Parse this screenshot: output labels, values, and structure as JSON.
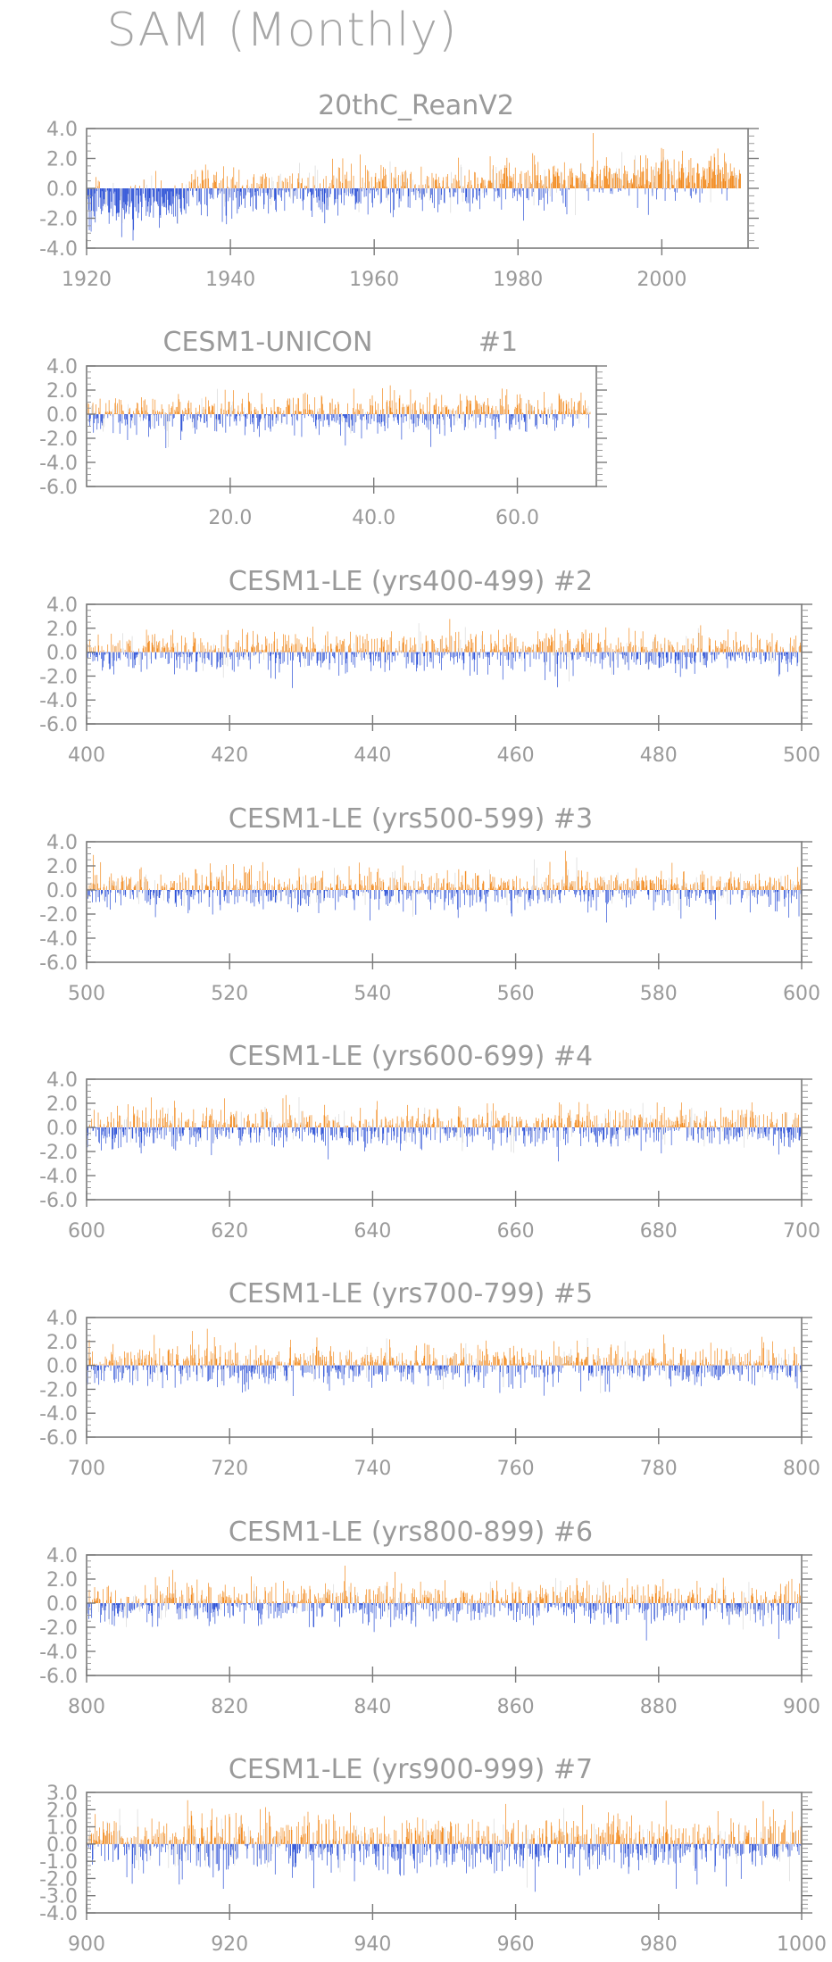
{
  "page": {
    "title": "SAM (Monthly)",
    "colors": {
      "positive": "#f28a1e",
      "negative": "#2a4fd6",
      "axis": "#8a8a8a",
      "text": "#9a9a9a"
    }
  },
  "chart_data": [
    {
      "type": "bar",
      "title": "20thC_ReanV2",
      "xlim": [
        1920,
        2012
      ],
      "ylim": [
        -4.0,
        4.0
      ],
      "yticks": [
        "4.0",
        "2.0",
        "0.0",
        "-2.0",
        "-4.0"
      ],
      "xticks": [
        "1920",
        "1940",
        "1960",
        "1980",
        "2000"
      ],
      "series": [
        {
          "values": {
            "x_start": 1920.0,
            "x_step": 0.0833,
            "description_values": [
              [
                1920,
                -1.1
              ],
              [
                1922,
                -1.4
              ],
              [
                1924,
                -1.2
              ],
              [
                1926,
                -1.3
              ],
              [
                1928,
                -1.5
              ],
              [
                1930,
                -1.6
              ],
              [
                1932,
                -1.2
              ],
              [
                1934,
                0.4
              ],
              [
                1936,
                -0.6
              ],
              [
                1938,
                0.2
              ],
              [
                1940,
                -0.8
              ],
              [
                1942,
                0.6
              ],
              [
                1944,
                -0.9
              ],
              [
                1946,
                0.4
              ],
              [
                1948,
                -0.3
              ],
              [
                1950,
                0.7
              ],
              [
                1952,
                -0.4
              ],
              [
                1954,
                0.5
              ],
              [
                1956,
                0.6
              ],
              [
                1958,
                -0.5
              ],
              [
                1960,
                0.9
              ],
              [
                1962,
                -1.3
              ],
              [
                1964,
                0.8
              ],
              [
                1966,
                -0.6
              ],
              [
                1968,
                0.7
              ],
              [
                1970,
                0.3
              ],
              [
                1972,
                -0.8
              ],
              [
                1974,
                0.9
              ],
              [
                1976,
                0.7
              ],
              [
                1978,
                1.2
              ],
              [
                1980,
                1.3
              ],
              [
                1982,
                0.9
              ],
              [
                1984,
                1.1
              ],
              [
                1986,
                1.5
              ],
              [
                1988,
                1.3
              ],
              [
                1990,
                1.6
              ],
              [
                1992,
                1.2
              ],
              [
                1994,
                1.4
              ],
              [
                1996,
                1.3
              ],
              [
                1998,
                1.5
              ],
              [
                2000,
                1.7
              ],
              [
                2002,
                1.4
              ],
              [
                2004,
                1.3
              ],
              [
                2006,
                1.6
              ],
              [
                2008,
                1.5
              ],
              [
                2010,
                1.7
              ]
            ]
          }
        }
      ]
    },
    {
      "type": "bar",
      "title": "CESM1-UNICON",
      "subtitle": "#1",
      "xlim": [
        0,
        71
      ],
      "ylim": [
        -6.0,
        4.0
      ],
      "yticks": [
        "4.0",
        "2.0",
        "0.0",
        "-2.0",
        "-4.0",
        "-6.0"
      ],
      "xticks": [
        "20.0",
        "40.0",
        "60.0"
      ]
    },
    {
      "type": "bar",
      "title": "CESM1-LE (yrs400-499)",
      "subtitle": "#2",
      "xlim": [
        400,
        500
      ],
      "ylim": [
        -6.0,
        4.0
      ],
      "yticks": [
        "4.0",
        "2.0",
        "0.0",
        "-2.0",
        "-4.0",
        "-6.0"
      ],
      "xticks": [
        "400",
        "420",
        "440",
        "460",
        "480",
        "500"
      ]
    },
    {
      "type": "bar",
      "title": "CESM1-LE (yrs500-599)",
      "subtitle": "#3",
      "xlim": [
        500,
        600
      ],
      "ylim": [
        -6.0,
        4.0
      ],
      "yticks": [
        "4.0",
        "2.0",
        "0.0",
        "-2.0",
        "-4.0",
        "-6.0"
      ],
      "xticks": [
        "500",
        "520",
        "540",
        "560",
        "580",
        "600"
      ]
    },
    {
      "type": "bar",
      "title": "CESM1-LE (yrs600-699)",
      "subtitle": "#4",
      "xlim": [
        600,
        700
      ],
      "ylim": [
        -6.0,
        4.0
      ],
      "yticks": [
        "4.0",
        "2.0",
        "0.0",
        "-2.0",
        "-4.0",
        "-6.0"
      ],
      "xticks": [
        "600",
        "620",
        "640",
        "660",
        "680",
        "700"
      ]
    },
    {
      "type": "bar",
      "title": "CESM1-LE (yrs700-799)",
      "subtitle": "#5",
      "xlim": [
        700,
        800
      ],
      "ylim": [
        -6.0,
        4.0
      ],
      "yticks": [
        "4.0",
        "2.0",
        "0.0",
        "-2.0",
        "-4.0",
        "-6.0"
      ],
      "xticks": [
        "700",
        "720",
        "740",
        "760",
        "780",
        "800"
      ]
    },
    {
      "type": "bar",
      "title": "CESM1-LE (yrs800-899)",
      "subtitle": "#6",
      "xlim": [
        800,
        900
      ],
      "ylim": [
        -6.0,
        4.0
      ],
      "yticks": [
        "4.0",
        "2.0",
        "0.0",
        "-2.0",
        "-4.0",
        "-6.0"
      ],
      "xticks": [
        "800",
        "820",
        "840",
        "860",
        "880",
        "900"
      ]
    },
    {
      "type": "bar",
      "title": "CESM1-LE (yrs900-999)",
      "subtitle": "#7",
      "xlim": [
        900,
        1000
      ],
      "ylim": [
        -4.0,
        3.0
      ],
      "yticks": [
        "3.0",
        "2.0",
        "1.0",
        "0.0",
        "-1.0",
        "-2.0",
        "-3.0",
        "-4.0"
      ],
      "xticks": [
        "900",
        "920",
        "940",
        "960",
        "980",
        "1000"
      ]
    }
  ]
}
